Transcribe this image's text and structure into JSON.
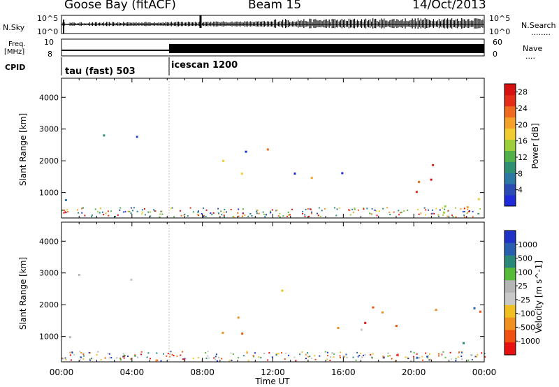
{
  "header": {
    "station": "Goose Bay (fitACF)",
    "beam": "Beam 15",
    "date": "14/Oct/2013"
  },
  "strip_labels": {
    "nsky": "N.Sky",
    "nsky_top": "10^5",
    "nsky_bottom": "10^0",
    "nsearch": "N.Search",
    "nsearch_top": "10^5",
    "nsearch_bottom": "10^0",
    "freq": "Freq.",
    "freq_unit": "[MHz]",
    "freq_top": "10",
    "freq_bottom": "8",
    "nave": "Nave",
    "nave_top": "60",
    "nave_bottom": "0",
    "cpid": "CPID",
    "cpid_1": "tau (fast) 503",
    "cpid_2": "icescan 1200"
  },
  "colors": {
    "power_scale": [
      "#1f2bdb",
      "#2a4bb5",
      "#2a78a3",
      "#2f8f73",
      "#52b04a",
      "#9ccf3a",
      "#f0cc30",
      "#f5a02a",
      "#ef6a1e",
      "#e42c18",
      "#d81010"
    ],
    "velocity_scale": [
      "#2033c8",
      "#2a5fb0",
      "#2a8878",
      "#55bb38",
      "#b5b5b5",
      "#c8c8c8",
      "#f0c020",
      "#f09020",
      "#f05010",
      "#e81010"
    ],
    "ground_scatter": "#bdbdbd"
  },
  "chart_data": [
    {
      "type": "heatmap",
      "name": "power",
      "ylabel": "Slant Range [km]",
      "ylim": [
        200,
        4600
      ],
      "yticks": [
        1000,
        2000,
        3000,
        4000
      ],
      "xlim": [
        0,
        24
      ],
      "colorbar": {
        "label": "Power [dB]",
        "range": [
          0,
          30
        ],
        "ticks": [
          4,
          8,
          12,
          16,
          20,
          24,
          28
        ]
      },
      "echo_regions": [
        {
          "t": [
            0.1,
            0.9
          ],
          "r": [
            700,
            2600
          ],
          "level": "mixed"
        },
        {
          "t": [
            0.9,
            3.0
          ],
          "r": [
            2300,
            3000
          ],
          "level": "low"
        },
        {
          "t": [
            3.0,
            6.0
          ],
          "r": [
            2600,
            3200
          ],
          "level": "low"
        },
        {
          "t": [
            9.0,
            12.5
          ],
          "r": [
            800,
            2500
          ],
          "level": "mixed"
        },
        {
          "t": [
            12.5,
            17.5
          ],
          "r": [
            900,
            1700
          ],
          "level": "mixed"
        },
        {
          "t": [
            17.5,
            23.8
          ],
          "r": [
            300,
            2000
          ],
          "level": "high"
        }
      ]
    },
    {
      "type": "heatmap",
      "name": "velocity",
      "ylabel": "Slant Range [km]",
      "xlabel": "Time UT",
      "ylim": [
        200,
        4600
      ],
      "yticks": [
        1000,
        2000,
        3000,
        4000
      ],
      "xlim": [
        0,
        24
      ],
      "xtick_labels": [
        "00:00",
        "04:00",
        "08:00",
        "12:00",
        "16:00",
        "20:00",
        "00:00"
      ],
      "colorbar": {
        "label": "Velocity [m s^-1]",
        "ticks": [
          1000,
          500,
          100,
          25,
          -25,
          -100,
          -500,
          -1000
        ]
      }
    }
  ]
}
